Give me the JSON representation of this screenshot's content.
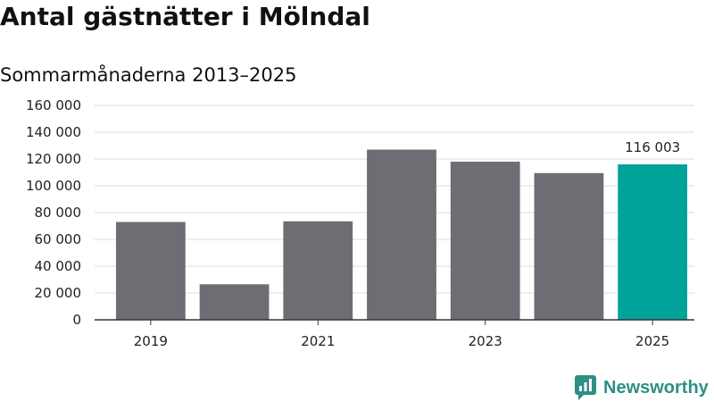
{
  "chart_data": {
    "type": "bar",
    "title": "Antal gästnätter i Mölndal",
    "subtitle": "Sommarmånaderna 2013–2025",
    "categories": [
      2019,
      2020,
      2021,
      2022,
      2023,
      2024,
      2025
    ],
    "values": [
      73000,
      26500,
      73500,
      127000,
      118000,
      109500,
      116003
    ],
    "x_tick_labels": [
      "2019",
      "2021",
      "2023",
      "2025"
    ],
    "y_ticks": [
      0,
      20000,
      40000,
      60000,
      80000,
      100000,
      120000,
      140000,
      160000
    ],
    "y_tick_labels": [
      "0",
      "20 000",
      "40 000",
      "60 000",
      "80 000",
      "100 000",
      "120 000",
      "140 000",
      "160 000"
    ],
    "ylim": [
      0,
      160000
    ],
    "annotations": [
      {
        "category": 2025,
        "label": "116 003"
      }
    ],
    "grid": true,
    "colors": {
      "default": "#6e6d73",
      "highlight": "#00a39a",
      "grid": "#dddddd",
      "axis": "#333333"
    },
    "highlight_category": 2025
  },
  "brand": {
    "name": "Newsworthy",
    "icon": "newsworthy-logo-icon",
    "color": "#2f8f84"
  }
}
